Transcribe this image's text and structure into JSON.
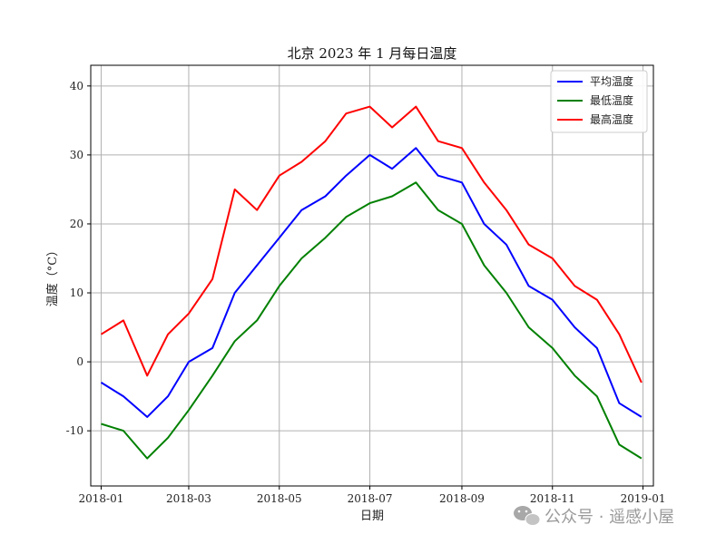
{
  "chart_data": {
    "type": "line",
    "title": "北京 2023 年 1 月每日温度",
    "xlabel": "日期",
    "ylabel": "温度（°C）",
    "x_ticks": [
      "2018-01",
      "2018-03",
      "2018-05",
      "2018-07",
      "2018-09",
      "2018-11",
      "2019-01"
    ],
    "y_ticks": [
      "-10",
      "0",
      "10",
      "20",
      "30",
      "40"
    ],
    "xlim_days": [
      -7,
      372
    ],
    "ylim": [
      -18,
      43
    ],
    "grid": true,
    "legend_position": "top-right",
    "series": [
      {
        "name": "平均温度",
        "color": "#0000ff",
        "x_day": [
          0,
          15,
          31,
          45,
          59,
          75,
          90,
          105,
          120,
          135,
          151,
          165,
          181,
          196,
          212,
          227,
          243,
          258,
          273,
          288,
          304,
          319,
          334,
          349,
          364
        ],
        "values": [
          -3,
          -5,
          -8,
          -5,
          0,
          2,
          10,
          14,
          18,
          22,
          24,
          27,
          30,
          28,
          31,
          27,
          26,
          20,
          17,
          11,
          9,
          5,
          2,
          -6,
          -8
        ]
      },
      {
        "name": "最低温度",
        "color": "#008000",
        "x_day": [
          0,
          15,
          31,
          45,
          59,
          75,
          90,
          105,
          120,
          135,
          151,
          165,
          181,
          196,
          212,
          227,
          243,
          258,
          273,
          288,
          304,
          319,
          334,
          349,
          364
        ],
        "values": [
          -9,
          -10,
          -14,
          -11,
          -7,
          -2,
          3,
          6,
          11,
          15,
          18,
          21,
          23,
          24,
          26,
          22,
          20,
          14,
          10,
          5,
          2,
          -2,
          -5,
          -12,
          -14
        ]
      },
      {
        "name": "最高温度",
        "color": "#ff0000",
        "x_day": [
          0,
          15,
          31,
          45,
          59,
          75,
          90,
          105,
          120,
          135,
          151,
          165,
          181,
          196,
          212,
          227,
          243,
          258,
          273,
          288,
          304,
          319,
          334,
          349,
          364
        ],
        "values": [
          4,
          6,
          -2,
          4,
          7,
          12,
          25,
          22,
          27,
          29,
          32,
          36,
          37,
          34,
          37,
          32,
          31,
          26,
          22,
          17,
          15,
          11,
          9,
          4,
          -3
        ]
      }
    ]
  },
  "watermark": {
    "text": "公众号 · 遥感小屋",
    "icon": "wechat-icon"
  }
}
